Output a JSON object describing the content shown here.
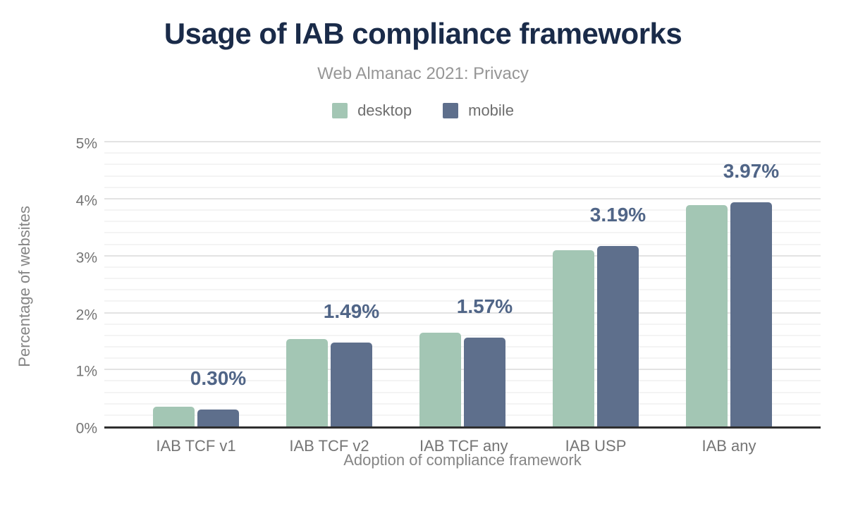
{
  "chart_data": {
    "type": "bar",
    "title": "Usage of IAB compliance frameworks",
    "subtitle": "Web Almanac 2021: Privacy",
    "categories": [
      "IAB TCF v1",
      "IAB TCF v2",
      "IAB TCF any",
      "IAB USP",
      "IAB any"
    ],
    "series": [
      {
        "name": "desktop",
        "color": "#a3c6b4",
        "values": [
          0.35,
          1.55,
          1.66,
          3.12,
          3.92
        ]
      },
      {
        "name": "mobile",
        "color": "#5e6f8c",
        "values": [
          0.3,
          1.49,
          1.57,
          3.19,
          3.97
        ]
      }
    ],
    "annotations": {
      "series": "mobile",
      "labels": [
        "0.30%",
        "1.49%",
        "1.57%",
        "3.19%",
        "3.97%"
      ],
      "color": "#506587"
    },
    "xlabel": "Adoption of compliance framework",
    "ylabel": "Percentage of websites",
    "ylim": [
      0,
      5
    ],
    "yticks": [
      "0%",
      "1%",
      "2%",
      "3%",
      "4%",
      "5%"
    ],
    "minor_grid_step": 0.2,
    "grid": true,
    "legend_position": "top"
  },
  "colors": {
    "title": "#1a2b49",
    "subtitle": "#969696",
    "axis_text": "#858585",
    "tick_text": "#757575",
    "grid_major": "#e3e3e3",
    "grid_minor": "#f4f4f4",
    "axis_line": "#2f2f2f",
    "background": "#ffffff"
  }
}
